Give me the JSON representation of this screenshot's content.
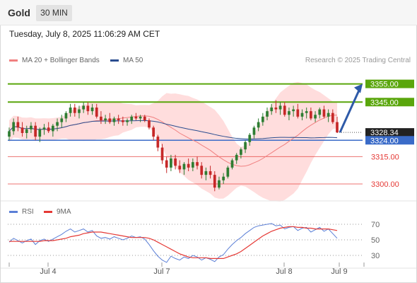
{
  "header": {
    "title": "Gold",
    "timeframe": "30 MIN",
    "datetime": "Tuesday, July 8, 2025 11:06:29 AM CET"
  },
  "legend": {
    "ma20": "MA 20 + Bollinger Bands",
    "ma50": "MA 50",
    "copyright": "Research © 2025 Trading Central"
  },
  "rsi_legend": {
    "rsi": "RSI",
    "ma9": "9MA"
  },
  "colors": {
    "up": "#2e7d32",
    "down": "#c62828",
    "bands": "#ffd1d1",
    "ma20": "#f08080",
    "ma50": "#2a4d8f",
    "resistance": "#5aa60c",
    "support": "#e53935",
    "pivot": "#3a6bc8",
    "arrow": "#2e5aa8",
    "rsi": "#5b7fd6",
    "rsi_ma": "#e53935"
  },
  "chart_data": [
    {
      "type": "candlestick",
      "ylim": [
        3293,
        3363
      ],
      "x_tick_labels": [
        "Jul 4",
        "Jul 7",
        "Jul 8",
        "Jul 9"
      ],
      "levels": [
        {
          "label": "3355.00",
          "value": 3355.0,
          "kind": "resistance"
        },
        {
          "label": "3345.00",
          "value": 3345.0,
          "kind": "resistance"
        },
        {
          "label": "3328.34",
          "value": 3328.34,
          "kind": "last"
        },
        {
          "label": "3324.00",
          "value": 3324.0,
          "kind": "pivot"
        },
        {
          "label": "3315.00",
          "value": 3315.0,
          "kind": "support"
        },
        {
          "label": "3300.00",
          "value": 3300.0,
          "kind": "support"
        }
      ],
      "ohlc": [
        [
          3326,
          3331,
          3324,
          3329
        ],
        [
          3329,
          3336,
          3327,
          3334
        ],
        [
          3334,
          3337,
          3329,
          3331
        ],
        [
          3331,
          3334,
          3326,
          3328
        ],
        [
          3328,
          3332,
          3325,
          3330
        ],
        [
          3330,
          3334,
          3328,
          3332
        ],
        [
          3332,
          3334,
          3324,
          3326
        ],
        [
          3326,
          3331,
          3323,
          3330
        ],
        [
          3330,
          3333,
          3327,
          3331
        ],
        [
          3331,
          3334,
          3328,
          3329
        ],
        [
          3329,
          3333,
          3326,
          3332
        ],
        [
          3332,
          3336,
          3329,
          3334
        ],
        [
          3334,
          3338,
          3331,
          3336
        ],
        [
          3336,
          3340,
          3334,
          3339
        ],
        [
          3339,
          3344,
          3337,
          3342
        ],
        [
          3342,
          3344,
          3337,
          3339
        ],
        [
          3339,
          3343,
          3336,
          3341
        ],
        [
          3341,
          3345,
          3339,
          3343
        ],
        [
          3343,
          3345,
          3338,
          3340
        ],
        [
          3340,
          3344,
          3338,
          3342
        ],
        [
          3342,
          3344,
          3336,
          3337
        ],
        [
          3337,
          3340,
          3333,
          3335
        ],
        [
          3335,
          3338,
          3333,
          3336
        ],
        [
          3336,
          3339,
          3333,
          3334
        ],
        [
          3334,
          3337,
          3332,
          3336
        ],
        [
          3336,
          3338,
          3333,
          3335
        ],
        [
          3335,
          3337,
          3332,
          3334
        ],
        [
          3334,
          3336,
          3332,
          3335
        ],
        [
          3335,
          3338,
          3333,
          3337
        ],
        [
          3337,
          3339,
          3335,
          3336
        ],
        [
          3336,
          3338,
          3334,
          3337
        ],
        [
          3337,
          3338,
          3334,
          3335
        ],
        [
          3335,
          3336,
          3330,
          3331
        ],
        [
          3331,
          3332,
          3324,
          3326
        ],
        [
          3326,
          3327,
          3318,
          3320
        ],
        [
          3320,
          3322,
          3311,
          3313
        ],
        [
          3313,
          3315,
          3306,
          3309
        ],
        [
          3309,
          3316,
          3307,
          3314
        ],
        [
          3314,
          3316,
          3308,
          3310
        ],
        [
          3310,
          3313,
          3306,
          3308
        ],
        [
          3308,
          3312,
          3305,
          3311
        ],
        [
          3311,
          3314,
          3307,
          3309
        ],
        [
          3309,
          3314,
          3307,
          3312
        ],
        [
          3312,
          3315,
          3308,
          3310
        ],
        [
          3310,
          3312,
          3303,
          3305
        ],
        [
          3305,
          3309,
          3302,
          3307
        ],
        [
          3307,
          3310,
          3303,
          3305
        ],
        [
          3305,
          3307,
          3296,
          3298
        ],
        [
          3298,
          3304,
          3297,
          3302
        ],
        [
          3302,
          3306,
          3300,
          3304
        ],
        [
          3304,
          3310,
          3303,
          3309
        ],
        [
          3309,
          3314,
          3308,
          3313
        ],
        [
          3313,
          3317,
          3311,
          3316
        ],
        [
          3316,
          3320,
          3314,
          3319
        ],
        [
          3319,
          3324,
          3317,
          3323
        ],
        [
          3323,
          3328,
          3321,
          3327
        ],
        [
          3327,
          3332,
          3325,
          3331
        ],
        [
          3331,
          3336,
          3329,
          3334
        ],
        [
          3334,
          3339,
          3332,
          3337
        ],
        [
          3337,
          3342,
          3335,
          3340
        ],
        [
          3340,
          3344,
          3338,
          3342
        ],
        [
          3342,
          3346,
          3339,
          3341
        ],
        [
          3341,
          3345,
          3338,
          3343
        ],
        [
          3343,
          3345,
          3337,
          3338
        ],
        [
          3338,
          3342,
          3335,
          3340
        ],
        [
          3340,
          3343,
          3337,
          3341
        ],
        [
          3341,
          3344,
          3336,
          3337
        ],
        [
          3337,
          3341,
          3335,
          3339
        ],
        [
          3339,
          3342,
          3336,
          3340
        ],
        [
          3340,
          3342,
          3335,
          3336
        ],
        [
          3336,
          3340,
          3334,
          3338
        ],
        [
          3338,
          3342,
          3336,
          3341
        ],
        [
          3341,
          3343,
          3336,
          3337
        ],
        [
          3337,
          3341,
          3334,
          3339
        ],
        [
          3339,
          3341,
          3333,
          3334
        ],
        [
          3334,
          3337,
          3328,
          3328.34
        ]
      ]
    },
    {
      "type": "line",
      "name": "RSI",
      "ylim": [
        20,
        80
      ],
      "y_tick_labels": [
        "70",
        "50",
        "30"
      ],
      "series": [
        {
          "name": "RSI",
          "values": [
            47,
            52,
            49,
            46,
            49,
            51,
            44,
            49,
            51,
            48,
            51,
            54,
            57,
            61,
            64,
            60,
            62,
            64,
            60,
            62,
            55,
            52,
            53,
            51,
            54,
            52,
            50,
            52,
            55,
            53,
            54,
            51,
            44,
            36,
            29,
            24,
            21,
            29,
            26,
            24,
            28,
            26,
            30,
            28,
            24,
            27,
            25,
            22,
            28,
            31,
            38,
            44,
            49,
            53,
            58,
            62,
            66,
            68,
            69,
            70,
            71,
            68,
            69,
            64,
            66,
            67,
            62,
            65,
            66,
            60,
            63,
            66,
            61,
            64,
            58,
            52
          ]
        },
        {
          "name": "9MA",
          "values": [
            48,
            48,
            48,
            48,
            48,
            48,
            48,
            48,
            49,
            49,
            49,
            50,
            51,
            52,
            54,
            55,
            56,
            58,
            59,
            60,
            60,
            60,
            59,
            58,
            57,
            56,
            55,
            54,
            53,
            53,
            53,
            53,
            52,
            50,
            47,
            44,
            41,
            38,
            35,
            32,
            30,
            28,
            27,
            27,
            27,
            27,
            26,
            26,
            26,
            26,
            28,
            30,
            32,
            35,
            39,
            43,
            47,
            51,
            55,
            58,
            61,
            63,
            65,
            66,
            67,
            67,
            66,
            66,
            65,
            65,
            64,
            64,
            64,
            64,
            63,
            62
          ]
        }
      ]
    }
  ]
}
